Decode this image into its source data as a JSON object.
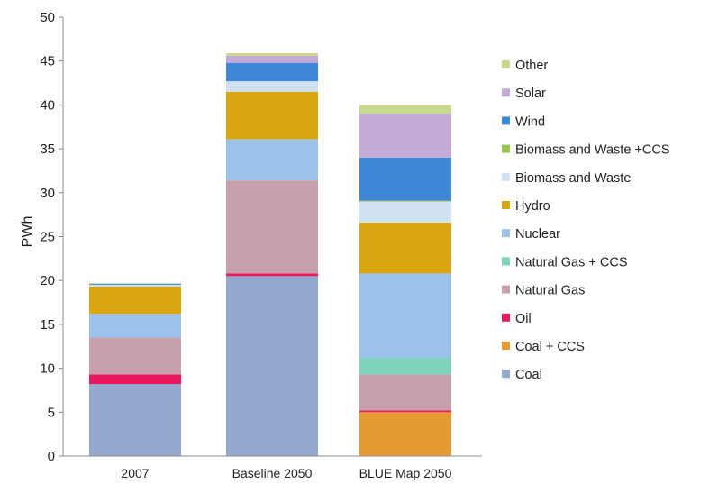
{
  "chart_data": {
    "type": "bar",
    "stacked": true,
    "title": "",
    "xlabel": "",
    "ylabel": "PWh",
    "ylim": [
      0,
      50
    ],
    "yticks": [
      0,
      5,
      10,
      15,
      20,
      25,
      30,
      35,
      40,
      45,
      50
    ],
    "grid": false,
    "legend_position": "right",
    "categories": [
      "2007",
      "Baseline 2050",
      "BLUE Map 2050"
    ],
    "series": [
      {
        "name": "Coal",
        "color": "#93a9cf",
        "values": [
          8.2,
          20.5,
          0
        ]
      },
      {
        "name": "Coal + CCS",
        "color": "#e69a33",
        "values": [
          0,
          0,
          5.0
        ]
      },
      {
        "name": "Oil",
        "color": "#e8195c",
        "values": [
          1.1,
          0.3,
          0.2
        ]
      },
      {
        "name": "Natural Gas",
        "color": "#c7a0ac",
        "values": [
          4.2,
          10.6,
          4.1
        ]
      },
      {
        "name": "Natural Gas + CCS",
        "color": "#7ed3bd",
        "values": [
          0,
          0,
          1.9
        ]
      },
      {
        "name": "Nuclear",
        "color": "#9cc1ea",
        "values": [
          2.7,
          4.7,
          9.6
        ]
      },
      {
        "name": "Hydro",
        "color": "#dba50f",
        "values": [
          3.1,
          5.4,
          5.8
        ]
      },
      {
        "name": "Biomass and Waste",
        "color": "#cfe0f0",
        "values": [
          0.2,
          1.2,
          2.4
        ]
      },
      {
        "name": "Biomass and Waste +CCS",
        "color": "#9ac452",
        "values": [
          0,
          0,
          0.1
        ]
      },
      {
        "name": "Wind",
        "color": "#3f86d6",
        "values": [
          0.1,
          2.1,
          4.9
        ]
      },
      {
        "name": "Solar",
        "color": "#c5aad8",
        "values": [
          0,
          0.8,
          5.0
        ]
      },
      {
        "name": "Other",
        "color": "#c8d98e",
        "values": [
          0.1,
          0.3,
          1.0
        ]
      }
    ]
  }
}
